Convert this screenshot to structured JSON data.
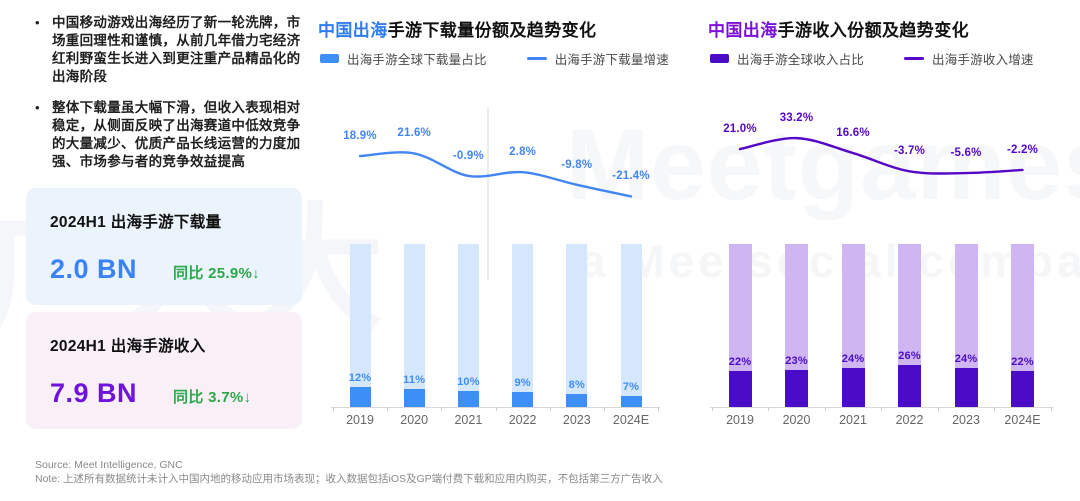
{
  "bullets": [
    "中国移动游戏出海经历了新一轮洗牌，市场重回理性和谨慎，从前几年借力宅经济红利野蛮生长进入到更注重产品精品化的出海阶段",
    "整体下载量虽大幅下滑，但收入表现相对稳定，从侧面反映了出海赛道中低效竞争的大量减少、优质产品长线运营的力度加强、市场参与者的竞争效益提高"
  ],
  "cards": [
    {
      "title": "2024H1 出海手游下载量",
      "value": "2.0 BN",
      "yoy": "同比 25.9%↓",
      "value_color": "#3B82F6",
      "bg": "#EBF3FC"
    },
    {
      "title": "2024H1 出海手游收入",
      "value": "7.9 BN",
      "yoy": "同比 3.7%↓",
      "value_color": "#6D13DC",
      "bg": "#F8F0F6"
    }
  ],
  "watermark": {
    "left_logo": "广大大",
    "brand": "Meetgames",
    "sub": "a Meetsocial company"
  },
  "footer": {
    "source": "Source: Meet Intelligence, GNC",
    "note": "Note: 上述所有数据统计未计入中国内地的移动应用市场表现；收入数据包括iOS及GP端付费下载和应用内购买，不包括第三方广告收入"
  },
  "chart_data": [
    {
      "type": "bar+line",
      "title_accent": "中国出海",
      "title_rest": "手游下载量份额及趋势变化",
      "legend": {
        "bar": "出海手游全球下载量占比",
        "line": "出海手游下载量增速"
      },
      "categories": [
        "2019",
        "2020",
        "2021",
        "2022",
        "2023",
        "2024E"
      ],
      "series": [
        {
          "name": "出海手游全球下载量占比",
          "type": "bar",
          "values": [
            12,
            11,
            10,
            9,
            8,
            7
          ],
          "labels": [
            "12%",
            "11%",
            "10%",
            "9%",
            "8%",
            "7%"
          ]
        },
        {
          "name": "出海手游下载量增速",
          "type": "line",
          "values": [
            18.9,
            21.6,
            -0.9,
            2.8,
            -9.8,
            -21.4
          ],
          "labels": [
            "18.9%",
            "21.6%",
            "-0.9%",
            "2.8%",
            "-9.8%",
            "-21.4%"
          ]
        }
      ],
      "bar_axis": {
        "min": 0,
        "max": 100,
        "unit": "%"
      },
      "grid": "off",
      "legend_position": "top",
      "colors": {
        "accent": "#2E7CEF",
        "bar_dark": "#3E8EF8",
        "bar_light": "#D4E7FC",
        "line": "#4285F4",
        "label": "#3E8EF8"
      }
    },
    {
      "type": "bar+line",
      "title_accent": "中国出海",
      "title_rest": "手游收入份额及趋势变化",
      "legend": {
        "bar": "出海手游全球收入占比",
        "line": "出海手游收入增速"
      },
      "categories": [
        "2019",
        "2020",
        "2021",
        "2022",
        "2023",
        "2024E"
      ],
      "series": [
        {
          "name": "出海手游全球收入占比",
          "type": "bar",
          "values": [
            22,
            23,
            24,
            26,
            24,
            22
          ],
          "labels": [
            "22%",
            "23%",
            "24%",
            "26%",
            "24%",
            "22%"
          ]
        },
        {
          "name": "出海手游收入增速",
          "type": "line",
          "values": [
            21.0,
            33.2,
            16.6,
            -3.7,
            -5.6,
            -2.2
          ],
          "labels": [
            "21.0%",
            "33.2%",
            "16.6%",
            "-3.7%",
            "-5.6%",
            "-2.2%"
          ]
        }
      ],
      "bar_axis": {
        "min": 0,
        "max": 100,
        "unit": "%"
      },
      "grid": "off",
      "legend_position": "top",
      "colors": {
        "accent": "#7C10D8",
        "bar_dark": "#4A0CC6",
        "bar_light": "#D0B5F3",
        "line": "#5508C8",
        "label": "#4A0CC6"
      }
    }
  ]
}
